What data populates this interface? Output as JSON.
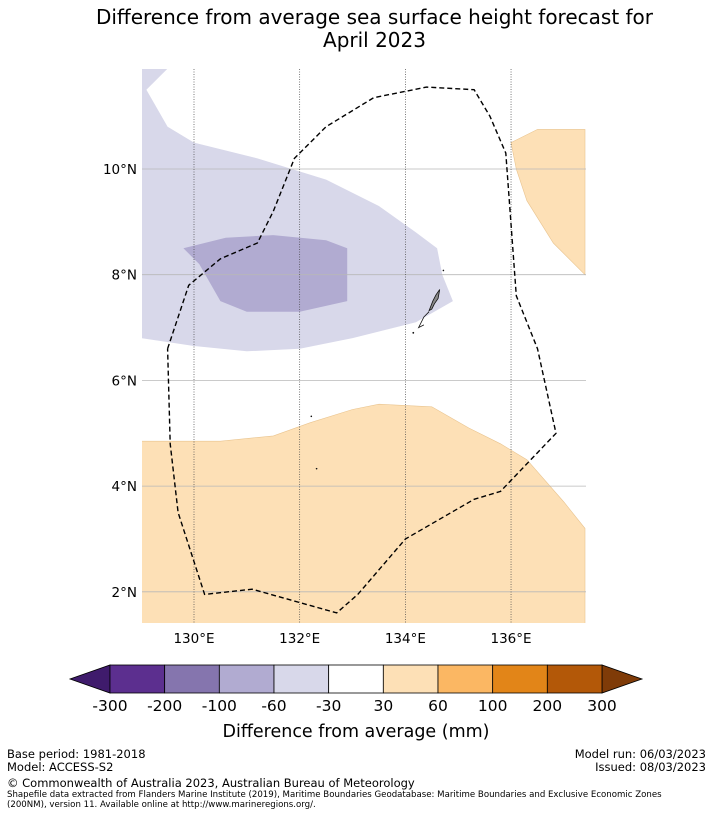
{
  "chart_data": {
    "type": "map",
    "title_line1": "Difference from average sea surface height forecast for",
    "title_line2": "April 2023",
    "lon_range": [
      129.0,
      137.4
    ],
    "lat_range": [
      1.4,
      11.9
    ],
    "lon_ticks": [
      {
        "value": 130,
        "label": "130°E"
      },
      {
        "value": 132,
        "label": "132°E"
      },
      {
        "value": 134,
        "label": "134°E"
      },
      {
        "value": 136,
        "label": "136°E"
      }
    ],
    "lat_ticks": [
      {
        "value": 10,
        "label": "10°N"
      },
      {
        "value": 8,
        "label": "8°N"
      },
      {
        "value": 6,
        "label": "6°N"
      },
      {
        "value": 4,
        "label": "4°N"
      },
      {
        "value": 2,
        "label": "2°N"
      }
    ],
    "regions": [
      {
        "name": "lavender-region",
        "category": "-60 to -30",
        "color": "#d8d8ea",
        "points": [
          [
            129.0,
            11.9
          ],
          [
            129.5,
            11.9
          ],
          [
            129.1,
            11.5
          ],
          [
            129.5,
            10.8
          ],
          [
            130.0,
            10.5
          ],
          [
            131.2,
            10.2
          ],
          [
            132.5,
            9.8
          ],
          [
            133.5,
            9.3
          ],
          [
            134.2,
            8.8
          ],
          [
            134.6,
            8.5
          ],
          [
            134.7,
            8.0
          ],
          [
            134.9,
            7.5
          ],
          [
            134.2,
            7.1
          ],
          [
            133.0,
            6.8
          ],
          [
            132.0,
            6.6
          ],
          [
            131.0,
            6.55
          ],
          [
            130.0,
            6.65
          ],
          [
            129.0,
            6.8
          ]
        ]
      },
      {
        "name": "purple-region",
        "category": "-100 to -60",
        "color": "#b1abd1",
        "points": [
          [
            129.8,
            8.5
          ],
          [
            130.6,
            8.7
          ],
          [
            131.5,
            8.75
          ],
          [
            132.5,
            8.65
          ],
          [
            132.9,
            8.5
          ],
          [
            132.9,
            7.5
          ],
          [
            132.0,
            7.3
          ],
          [
            131.0,
            7.3
          ],
          [
            130.5,
            7.5
          ],
          [
            130.1,
            8.2
          ]
        ]
      },
      {
        "name": "tan-region-south",
        "category": "30 to 60",
        "color": "#fde0b6",
        "points": [
          [
            129.0,
            4.85
          ],
          [
            129.8,
            4.85
          ],
          [
            130.5,
            4.85
          ],
          [
            131.5,
            4.95
          ],
          [
            132.2,
            5.2
          ],
          [
            133.0,
            5.45
          ],
          [
            133.5,
            5.55
          ],
          [
            134.5,
            5.5
          ],
          [
            135.2,
            5.1
          ],
          [
            135.8,
            4.8
          ],
          [
            136.3,
            4.5
          ],
          [
            137.0,
            3.7
          ],
          [
            137.4,
            3.2
          ],
          [
            137.4,
            1.4
          ],
          [
            129.0,
            1.4
          ]
        ]
      },
      {
        "name": "tan-region-east",
        "category": "30 to 60",
        "color": "#fde0b6",
        "points": [
          [
            136.0,
            10.5
          ],
          [
            136.5,
            10.75
          ],
          [
            137.4,
            10.75
          ],
          [
            137.4,
            8.0
          ],
          [
            136.8,
            8.6
          ],
          [
            136.3,
            9.4
          ],
          [
            136.1,
            10.0
          ]
        ]
      }
    ],
    "eez_boundary": [
      [
        129.5,
        6.6
      ],
      [
        129.9,
        7.8
      ],
      [
        130.5,
        8.3
      ],
      [
        131.2,
        8.6
      ],
      [
        131.5,
        9.2
      ],
      [
        131.9,
        10.2
      ],
      [
        132.5,
        10.8
      ],
      [
        133.4,
        11.35
      ],
      [
        134.4,
        11.55
      ],
      [
        135.3,
        11.5
      ],
      [
        135.6,
        11.0
      ],
      [
        135.9,
        10.3
      ],
      [
        136.1,
        7.6
      ],
      [
        136.5,
        6.6
      ],
      [
        136.85,
        5.0
      ],
      [
        135.8,
        3.9
      ],
      [
        135.3,
        3.75
      ],
      [
        134.0,
        3.0
      ],
      [
        133.1,
        1.95
      ],
      [
        132.7,
        1.6
      ],
      [
        131.1,
        2.05
      ],
      [
        130.2,
        1.95
      ],
      [
        129.7,
        3.5
      ],
      [
        129.55,
        4.8
      ],
      [
        129.5,
        6.6
      ]
    ],
    "land_mark_name": "palau-islands",
    "colorbar": {
      "title": "Difference from average (mm)",
      "colors": [
        "#3f1b6c",
        "#5c2f8f",
        "#8575ae",
        "#b1abd1",
        "#d8d8ea",
        "#ffffff",
        "#fde0b6",
        "#fbb763",
        "#e28518",
        "#b35808",
        "#7f3b08"
      ],
      "tick_labels": [
        "-300",
        "-200",
        "-100",
        "-60",
        "-30",
        "30",
        "60",
        "100",
        "200",
        "300"
      ]
    }
  },
  "footer": {
    "base_period": "Base period: 1981-2018",
    "model": "Model: ACCESS-S2",
    "model_run": "Model run: 06/03/2023",
    "issued": "Issued: 08/03/2023",
    "copyright": "© Commonwealth of Australia 2023, Australian Bureau of Meteorology",
    "shapefile_line1": "Shapefile data extracted from Flanders Marine Institute (2019), Maritime Boundaries Geodatabase: Maritime Boundaries and Exclusive Economic Zones",
    "shapefile_line2": "(200NM), version 11. Available online at http://www.marineregions.org/."
  }
}
